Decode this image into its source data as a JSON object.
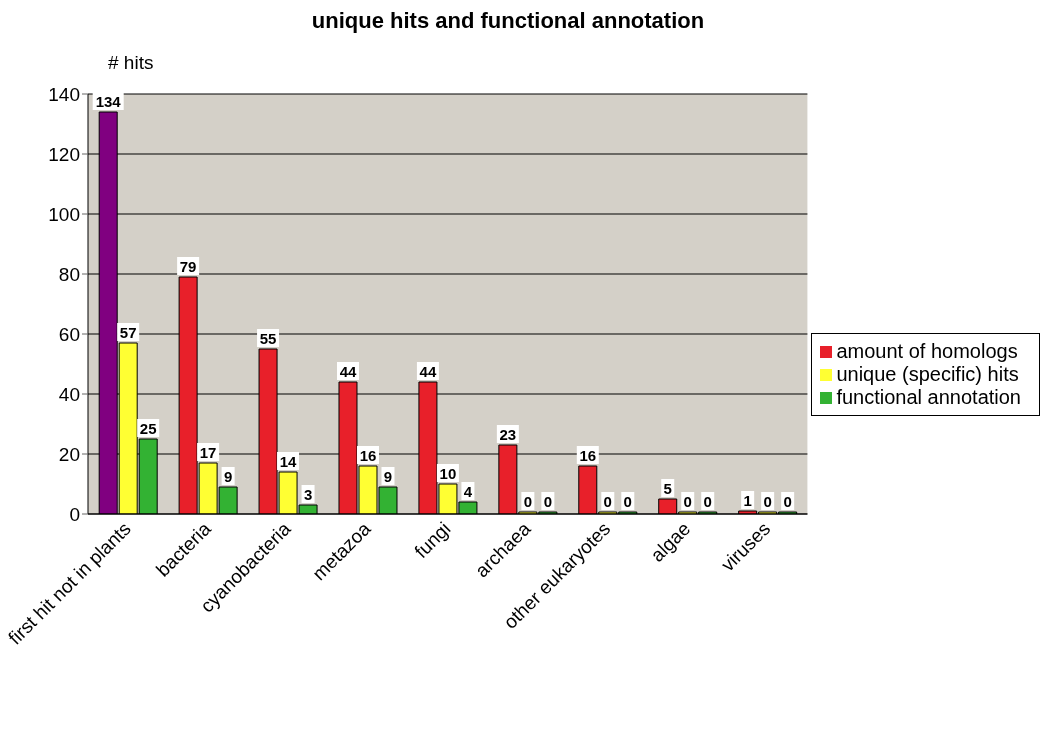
{
  "chart_data": {
    "type": "bar",
    "title": "unique hits and functional annotation",
    "ylabel": "# hits",
    "categories": [
      "first hit not in plants",
      "bacteria",
      "cyanobacteria",
      "metazoa",
      "fungi",
      "archaea",
      "other eukaryotes",
      "algae",
      "viruses"
    ],
    "series": [
      {
        "name": "amount of homologs",
        "color": "#e8202a",
        "colors": [
          "#800080",
          "#e8202a",
          "#e8202a",
          "#e8202a",
          "#e8202a",
          "#e8202a",
          "#e8202a",
          "#e8202a",
          "#e8202a"
        ],
        "values": [
          134,
          79,
          55,
          44,
          44,
          23,
          16,
          5,
          1
        ]
      },
      {
        "name": "unique (specific) hits",
        "color": "#ffff33",
        "values": [
          57,
          17,
          14,
          16,
          10,
          0,
          0,
          0,
          0
        ]
      },
      {
        "name": "functional annotation",
        "color": "#33b233",
        "values": [
          25,
          9,
          3,
          9,
          4,
          0,
          0,
          0,
          0
        ]
      }
    ],
    "ylim": [
      0,
      140
    ],
    "yticks": [
      0,
      20,
      40,
      60,
      80,
      100,
      120,
      140
    ],
    "grid": "y",
    "legend": "right",
    "data_labels": true
  }
}
